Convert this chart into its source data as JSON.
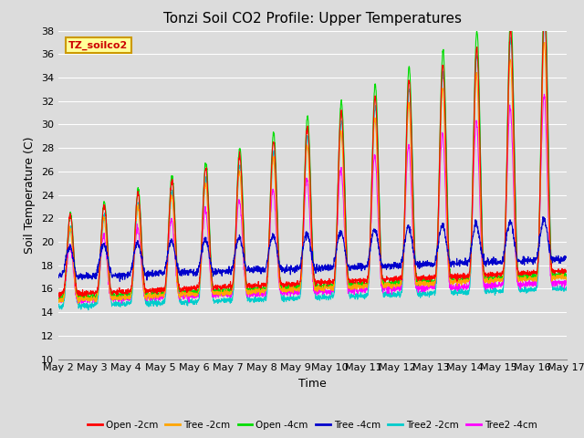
{
  "title": "Tonzi Soil CO2 Profile: Upper Temperatures",
  "xlabel": "Time",
  "ylabel": "Soil Temperature (C)",
  "ylim": [
    10,
    38
  ],
  "yticks": [
    10,
    12,
    14,
    16,
    18,
    20,
    22,
    24,
    26,
    28,
    30,
    32,
    34,
    36,
    38
  ],
  "background_color": "#dcdcdc",
  "plot_bg_color": "#dcdcdc",
  "grid_color": "#ffffff",
  "legend_label": "TZ_soilco2",
  "legend_bg": "#ffff99",
  "legend_border": "#cc9900",
  "series_colors": {
    "Open -2cm": "#ff0000",
    "Tree -2cm": "#ffa500",
    "Open -4cm": "#00dd00",
    "Tree -4cm": "#0000cc",
    "Tree2 -2cm": "#00cccc",
    "Tree2 -4cm": "#ff00ff"
  },
  "series_order": [
    "Tree2 -2cm",
    "Tree2 -4cm",
    "Open -4cm",
    "Tree -2cm",
    "Open -2cm",
    "Tree -4cm"
  ],
  "legend_order": [
    "Open -2cm",
    "Tree -2cm",
    "Open -4cm",
    "Tree -4cm",
    "Tree2 -2cm",
    "Tree2 -4cm"
  ],
  "n_days": 15,
  "pts_per_day": 144,
  "day_labels": [
    "May 2",
    "May 3",
    "May 4",
    "May 5",
    "May 6",
    "May 7",
    "May 8",
    "May 9",
    "May 10",
    "May 11",
    "May 12",
    "May 13",
    "May 14",
    "May 15",
    "May 16",
    "May 17"
  ],
  "title_fontsize": 11,
  "axis_label_fontsize": 9,
  "tick_fontsize": 8
}
